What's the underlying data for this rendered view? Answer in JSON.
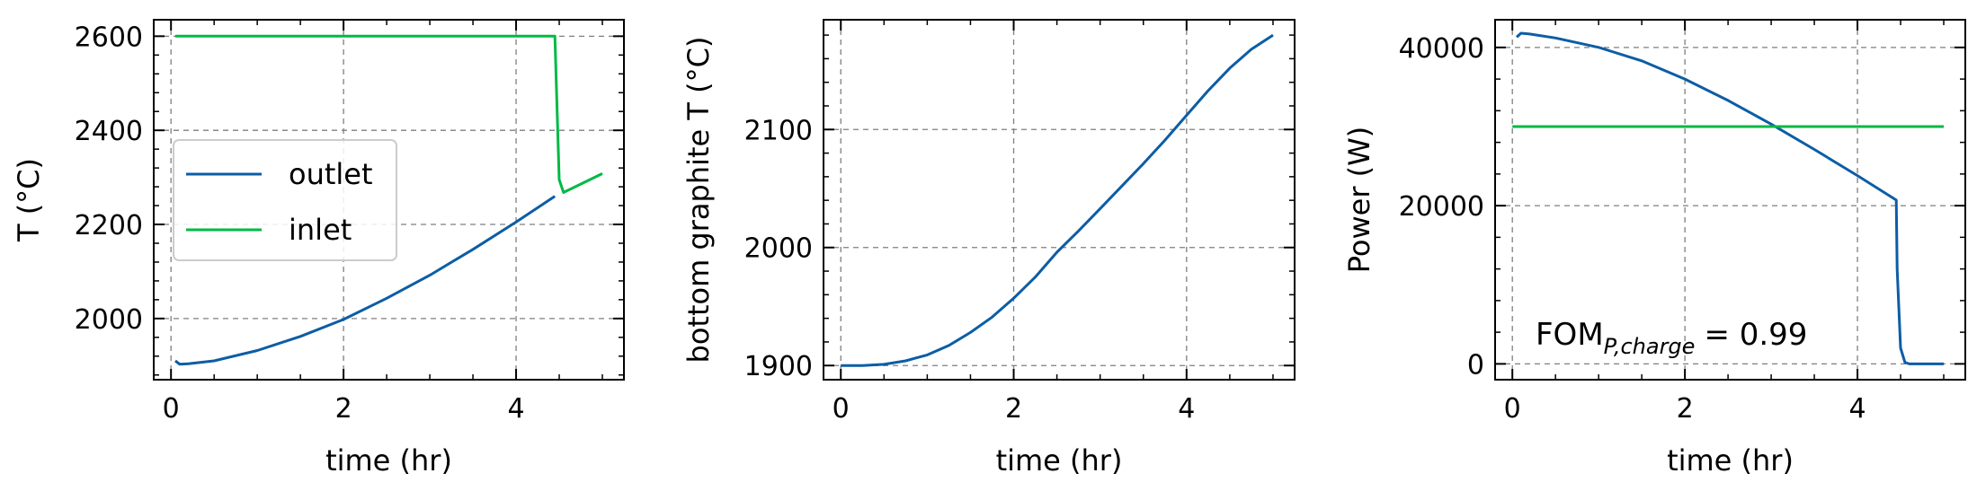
{
  "colors": {
    "outlet": "#0C5DA5",
    "inlet": "#00B945",
    "grid": "#7f7f7f"
  },
  "chart_data": [
    {
      "type": "line",
      "xlabel": "time (hr)",
      "ylabel": "T (°C)",
      "xlim": [
        -0.2,
        5.25
      ],
      "ylim": [
        1870,
        2635
      ],
      "xticks": [
        0,
        2,
        4
      ],
      "yticks": [
        2000,
        2200,
        2400,
        2600
      ],
      "grid": true,
      "legend": {
        "placement": "center-left",
        "entries": [
          "outlet",
          "inlet"
        ]
      },
      "series": [
        {
          "name": "outlet",
          "color": "#0C5DA5",
          "x": [
            0.05,
            0.1,
            0.2,
            0.5,
            1.0,
            1.5,
            2.0,
            2.5,
            3.0,
            3.5,
            4.0,
            4.45
          ],
          "y": [
            1910,
            1903,
            1904,
            1910,
            1932,
            1962,
            1998,
            2043,
            2092,
            2147,
            2205,
            2260
          ]
        },
        {
          "name": "inlet",
          "color": "#00B945",
          "x": [
            0.05,
            4.45,
            4.5,
            4.55,
            5.0
          ],
          "y": [
            2600,
            2600,
            2295,
            2268,
            2308
          ]
        }
      ]
    },
    {
      "type": "line",
      "xlabel": "time (hr)",
      "ylabel": "bottom graphite T (°C)",
      "xlim": [
        -0.2,
        5.25
      ],
      "ylim": [
        1888,
        2193
      ],
      "xticks": [
        0,
        2,
        4
      ],
      "yticks": [
        1900,
        2000,
        2100
      ],
      "grid": true,
      "series": [
        {
          "color": "#0C5DA5",
          "x": [
            0,
            0.25,
            0.5,
            0.75,
            1.0,
            1.25,
            1.5,
            1.75,
            2.0,
            2.25,
            2.5,
            2.75,
            3.0,
            3.25,
            3.5,
            3.75,
            4.0,
            4.25,
            4.5,
            4.75,
            5.0
          ],
          "y": [
            1900,
            1900,
            1901,
            1904,
            1909,
            1917,
            1928,
            1941,
            1957,
            1975,
            1996,
            2014,
            2033,
            2052,
            2071,
            2091,
            2112,
            2133,
            2152,
            2168,
            2180
          ]
        }
      ]
    },
    {
      "type": "line",
      "xlabel": "time (hr)",
      "ylabel": "Power (W)",
      "xlim": [
        -0.2,
        5.25
      ],
      "ylim": [
        -2000,
        43500
      ],
      "xticks": [
        0,
        2,
        4
      ],
      "yticks": [
        0,
        20000,
        40000
      ],
      "grid": true,
      "annotation": {
        "main": "FOM",
        "sub": "P,charge",
        "value": "= 0.99"
      },
      "series": [
        {
          "color": "#0C5DA5",
          "x": [
            0.05,
            0.1,
            0.2,
            0.5,
            1.0,
            1.5,
            2.0,
            2.5,
            3.0,
            3.5,
            4.0,
            4.45,
            4.46,
            4.5,
            4.55,
            4.6,
            5.0
          ],
          "y": [
            41300,
            41800,
            41700,
            41200,
            40000,
            38300,
            36000,
            33300,
            30300,
            27100,
            23800,
            20700,
            12000,
            2000,
            200,
            0,
            0
          ]
        },
        {
          "color": "#00B945",
          "x": [
            0.0,
            5.0
          ],
          "y": [
            30000,
            30000
          ]
        }
      ]
    }
  ]
}
